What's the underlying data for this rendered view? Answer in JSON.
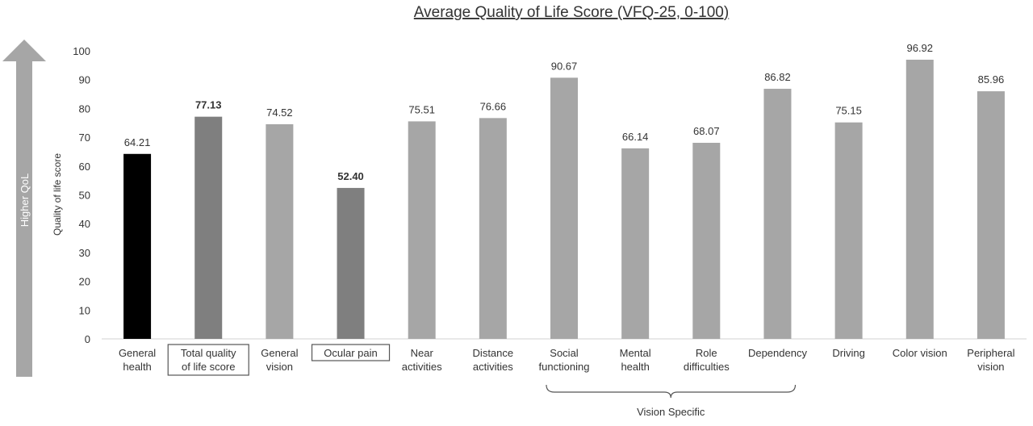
{
  "chart_data": {
    "type": "bar",
    "title": "Average Quality of Life Score (VFQ-25, 0-100)",
    "ylabel": "Quality of life score",
    "arrow_label": "Higher QoL",
    "ylim": [
      0,
      100
    ],
    "yticks": [
      0,
      10,
      20,
      30,
      40,
      50,
      60,
      70,
      80,
      90,
      100
    ],
    "grid": false,
    "categories": [
      [
        "General",
        "health"
      ],
      [
        "Total quality",
        "of life score"
      ],
      [
        "General",
        "vision"
      ],
      [
        "Ocular pain"
      ],
      [
        "Near",
        "activities"
      ],
      [
        "Distance",
        "activities"
      ],
      [
        "Social",
        "functioning"
      ],
      [
        "Mental",
        "health"
      ],
      [
        "Role",
        "difficulties"
      ],
      [
        "Dependency"
      ],
      [
        "Driving"
      ],
      [
        "Color vision"
      ],
      [
        "Peripheral",
        "vision"
      ]
    ],
    "values": [
      64.21,
      77.13,
      74.52,
      52.4,
      75.51,
      76.66,
      90.67,
      66.14,
      68.07,
      86.82,
      75.15,
      96.92,
      85.96
    ],
    "value_labels": [
      "64.21",
      "77.13",
      "74.52",
      "52.40",
      "75.51",
      "76.66",
      "90.67",
      "66.14",
      "68.07",
      "86.82",
      "75.15",
      "96.92",
      "85.96"
    ],
    "bar_colors": [
      "#000000",
      "#7f7f7f",
      "#a6a6a6",
      "#7f7f7f",
      "#a6a6a6",
      "#a6a6a6",
      "#a6a6a6",
      "#a6a6a6",
      "#a6a6a6",
      "#a6a6a6",
      "#a6a6a6",
      "#a6a6a6",
      "#a6a6a6"
    ],
    "highlighted": [
      false,
      true,
      false,
      true,
      false,
      false,
      false,
      false,
      false,
      false,
      false,
      false,
      false
    ],
    "group_annotation": {
      "label": "Vision Specific",
      "from_category": 6,
      "to_category": 9
    }
  }
}
